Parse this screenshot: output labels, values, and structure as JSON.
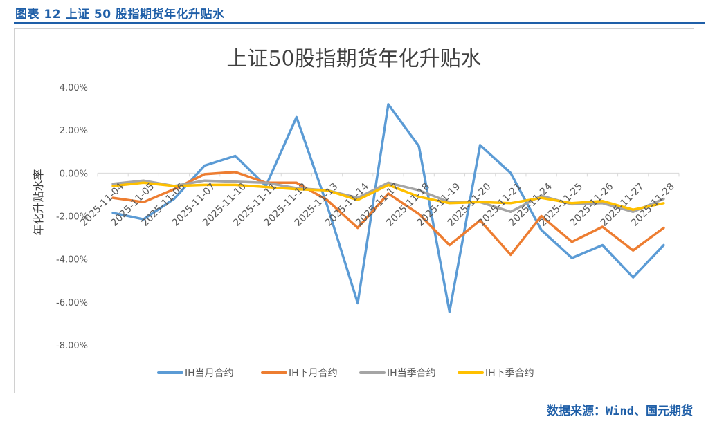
{
  "caption": "图表 12 上证 50 股指期货年化升贴水",
  "source": "数据来源：Wind、国元期货",
  "chart_data": {
    "type": "line",
    "title": "上证50股指期货年化升贴水",
    "xlabel": "",
    "ylabel": "年化升贴水率",
    "ylim": [
      -8,
      4
    ],
    "yticks": [
      4,
      2,
      0,
      -2,
      -4,
      -6,
      -8
    ],
    "ytick_labels": [
      "4.00%",
      "2.00%",
      "0.00%",
      "-2.00%",
      "-4.00%",
      "-6.00%",
      "-8.00%"
    ],
    "categories": [
      "2025-11-04",
      "2025-11-05",
      "2025-11-06",
      "2025-11-07",
      "2025-11-10",
      "2025-11-11",
      "2025-11-12",
      "2025-11-13",
      "2025-11-14",
      "2025-11-17",
      "2025-11-18",
      "2025-11-19",
      "2025-11-20",
      "2025-11-21",
      "2025-11-24",
      "2025-11-25",
      "2025-11-26",
      "2025-11-27",
      "2025-11-28"
    ],
    "series": [
      {
        "name": "IH当月合约",
        "color": "#5b9bd5",
        "values": [
          -1.85,
          -2.15,
          -1.2,
          0.35,
          0.8,
          -0.6,
          2.6,
          -1.5,
          -6.05,
          3.2,
          1.25,
          -6.45,
          1.3,
          0.0,
          -2.65,
          -3.95,
          -3.35,
          -4.85,
          -3.35
        ]
      },
      {
        "name": "IH下月合约",
        "color": "#ed7d31",
        "values": [
          -1.15,
          -1.35,
          -0.75,
          -0.05,
          0.05,
          -0.45,
          -0.45,
          -1.25,
          -2.55,
          -0.95,
          -1.9,
          -3.35,
          -2.2,
          -3.8,
          -2.0,
          -3.2,
          -2.5,
          -3.6,
          -2.55
        ]
      },
      {
        "name": "IH当季合约",
        "color": "#a5a5a5",
        "values": [
          -0.5,
          -0.35,
          -0.6,
          -0.35,
          -0.4,
          -0.45,
          -0.7,
          -0.8,
          -1.15,
          -0.45,
          -0.8,
          -1.35,
          -1.35,
          -1.8,
          -1.05,
          -1.45,
          -1.4,
          -1.8,
          -1.2
        ]
      },
      {
        "name": "IH下季合约",
        "color": "#ffc000",
        "values": [
          -0.6,
          -0.45,
          -0.6,
          -0.55,
          -0.55,
          -0.65,
          -0.75,
          -0.8,
          -1.25,
          -0.55,
          -1.1,
          -1.4,
          -1.35,
          -1.4,
          -1.15,
          -1.4,
          -1.3,
          -1.7,
          -1.4
        ]
      }
    ],
    "legend_position": "bottom"
  }
}
